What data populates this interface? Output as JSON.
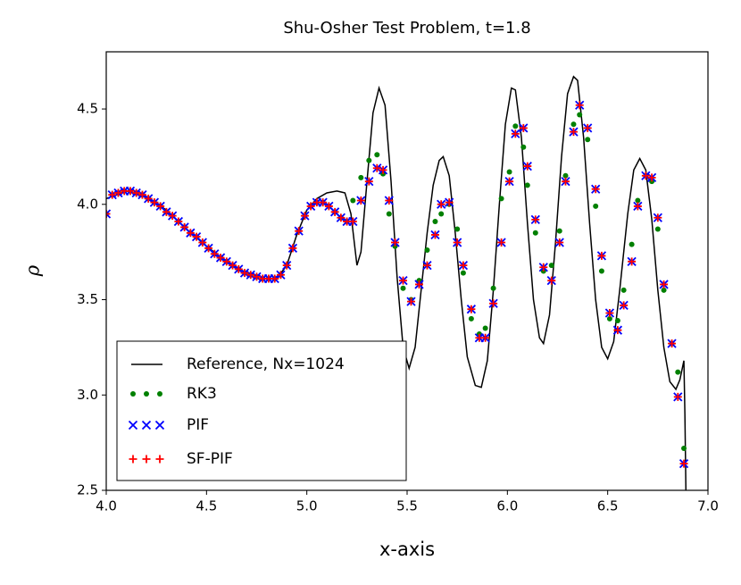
{
  "chart_data": {
    "type": "line",
    "title": "Shu-Osher Test Problem, t=1.8",
    "x_label": "x-axis",
    "y_label": "ρ",
    "xlim": [
      4.0,
      7.0
    ],
    "ylim": [
      2.5,
      4.8
    ],
    "xticks": [
      {
        "value": 4.0,
        "label": "4.0"
      },
      4.5,
      {
        "value": 5.0,
        "label": "5.0"
      },
      5.5,
      {
        "value": 6.0,
        "label": "6.0"
      },
      6.5,
      {
        "value": 7.0,
        "label": "7.0"
      }
    ],
    "yticks": [
      2.5,
      {
        "value": 3.0,
        "label": "3.0"
      },
      3.5,
      {
        "value": 4.0,
        "label": "4.0"
      },
      4.5
    ],
    "legend": "lower left",
    "series": [
      {
        "name": "Reference, Nx=1024",
        "color": "#000000",
        "marker": "line",
        "x": [
          4.0,
          4.1,
          4.2,
          4.3,
          4.4,
          4.5,
          4.6,
          4.7,
          4.8,
          4.85,
          4.9,
          4.95,
          5.0,
          5.05,
          5.1,
          5.15,
          5.19,
          5.22,
          5.25,
          5.27,
          5.3,
          5.33,
          5.36,
          5.39,
          5.42,
          5.45,
          5.48,
          5.51,
          5.54,
          5.57,
          5.6,
          5.63,
          5.66,
          5.68,
          5.71,
          5.74,
          5.77,
          5.8,
          5.84,
          5.87,
          5.9,
          5.93,
          5.96,
          5.99,
          6.02,
          6.04,
          6.07,
          6.1,
          6.13,
          6.16,
          6.18,
          6.21,
          6.24,
          6.27,
          6.3,
          6.33,
          6.35,
          6.38,
          6.41,
          6.44,
          6.47,
          6.5,
          6.53,
          6.56,
          6.6,
          6.63,
          6.66,
          6.69,
          6.72,
          6.75,
          6.78,
          6.81,
          6.84,
          6.86,
          6.88,
          6.885,
          6.89
        ],
        "values": [
          4.03,
          4.07,
          4.04,
          3.97,
          3.87,
          3.78,
          3.7,
          3.64,
          3.61,
          3.61,
          3.68,
          3.84,
          3.97,
          4.03,
          4.06,
          4.07,
          4.06,
          3.95,
          3.68,
          3.75,
          4.12,
          4.48,
          4.61,
          4.52,
          4.12,
          3.62,
          3.25,
          3.14,
          3.25,
          3.55,
          3.85,
          4.1,
          4.23,
          4.25,
          4.15,
          3.85,
          3.5,
          3.2,
          3.05,
          3.04,
          3.18,
          3.55,
          4.0,
          4.42,
          4.61,
          4.6,
          4.35,
          3.9,
          3.5,
          3.3,
          3.27,
          3.42,
          3.8,
          4.25,
          4.58,
          4.67,
          4.65,
          4.35,
          3.9,
          3.5,
          3.25,
          3.19,
          3.28,
          3.55,
          3.95,
          4.18,
          4.24,
          4.18,
          3.92,
          3.55,
          3.25,
          3.07,
          3.03,
          3.08,
          3.18,
          2.9,
          2.5
        ]
      },
      {
        "name": "RK3",
        "color": "#008000",
        "marker": "dot",
        "x": [
          4.0,
          4.03,
          4.06,
          4.09,
          4.12,
          4.15,
          4.18,
          4.21,
          4.24,
          4.27,
          4.3,
          4.33,
          4.36,
          4.39,
          4.42,
          4.45,
          4.48,
          4.51,
          4.54,
          4.57,
          4.6,
          4.63,
          4.66,
          4.69,
          4.72,
          4.75,
          4.78,
          4.81,
          4.84,
          4.87,
          4.9,
          4.93,
          4.96,
          4.99,
          5.02,
          5.05,
          5.08,
          5.11,
          5.14,
          5.17,
          5.2,
          5.23,
          5.27,
          5.31,
          5.35,
          5.38,
          5.41,
          5.44,
          5.48,
          5.52,
          5.56,
          5.6,
          5.64,
          5.67,
          5.71,
          5.75,
          5.78,
          5.82,
          5.86,
          5.89,
          5.93,
          5.97,
          6.01,
          6.04,
          6.08,
          6.1,
          6.14,
          6.18,
          6.22,
          6.26,
          6.29,
          6.33,
          6.36,
          6.4,
          6.44,
          6.47,
          6.51,
          6.55,
          6.58,
          6.62,
          6.65,
          6.69,
          6.72,
          6.75,
          6.78,
          6.82,
          6.85,
          6.88
        ],
        "values": [
          3.95,
          4.05,
          4.06,
          4.07,
          4.07,
          4.06,
          4.05,
          4.03,
          4.01,
          3.99,
          3.96,
          3.94,
          3.91,
          3.88,
          3.85,
          3.83,
          3.8,
          3.77,
          3.74,
          3.72,
          3.7,
          3.68,
          3.66,
          3.64,
          3.63,
          3.62,
          3.61,
          3.61,
          3.61,
          3.63,
          3.68,
          3.77,
          3.86,
          3.94,
          3.99,
          4.01,
          4.01,
          3.99,
          3.96,
          3.93,
          3.91,
          4.02,
          4.14,
          4.23,
          4.26,
          4.16,
          3.95,
          3.78,
          3.56,
          3.5,
          3.6,
          3.76,
          3.91,
          3.95,
          4.0,
          3.87,
          3.64,
          3.4,
          3.32,
          3.35,
          3.56,
          4.03,
          4.17,
          4.41,
          4.3,
          4.1,
          3.85,
          3.65,
          3.68,
          3.86,
          4.15,
          4.42,
          4.47,
          4.34,
          3.99,
          3.65,
          3.4,
          3.39,
          3.55,
          3.79,
          4.02,
          4.15,
          4.12,
          3.87,
          3.55,
          3.27,
          3.12,
          2.72
        ]
      },
      {
        "name": "PIF",
        "color": "#0000ff",
        "marker": "x",
        "x": [
          4.0,
          4.03,
          4.06,
          4.09,
          4.12,
          4.15,
          4.18,
          4.21,
          4.24,
          4.27,
          4.3,
          4.33,
          4.36,
          4.39,
          4.42,
          4.45,
          4.48,
          4.51,
          4.54,
          4.57,
          4.6,
          4.63,
          4.66,
          4.69,
          4.72,
          4.75,
          4.78,
          4.81,
          4.84,
          4.87,
          4.9,
          4.93,
          4.96,
          4.99,
          5.02,
          5.05,
          5.08,
          5.11,
          5.14,
          5.17,
          5.2,
          5.23,
          5.27,
          5.31,
          5.35,
          5.38,
          5.41,
          5.44,
          5.48,
          5.52,
          5.56,
          5.6,
          5.64,
          5.67,
          5.71,
          5.75,
          5.78,
          5.82,
          5.86,
          5.89,
          5.93,
          5.97,
          6.01,
          6.04,
          6.08,
          6.1,
          6.14,
          6.18,
          6.22,
          6.26,
          6.29,
          6.33,
          6.36,
          6.4,
          6.44,
          6.47,
          6.51,
          6.55,
          6.58,
          6.62,
          6.65,
          6.69,
          6.72,
          6.75,
          6.78,
          6.82,
          6.85,
          6.88
        ],
        "values": [
          3.95,
          4.05,
          4.06,
          4.07,
          4.07,
          4.06,
          4.05,
          4.03,
          4.01,
          3.99,
          3.96,
          3.94,
          3.91,
          3.88,
          3.85,
          3.83,
          3.8,
          3.77,
          3.74,
          3.72,
          3.7,
          3.68,
          3.66,
          3.64,
          3.63,
          3.62,
          3.61,
          3.61,
          3.61,
          3.63,
          3.68,
          3.77,
          3.86,
          3.94,
          3.99,
          4.01,
          4.01,
          3.99,
          3.96,
          3.93,
          3.91,
          3.91,
          4.02,
          4.12,
          4.19,
          4.18,
          4.02,
          3.8,
          3.6,
          3.49,
          3.58,
          3.68,
          3.84,
          4.0,
          4.01,
          3.8,
          3.68,
          3.45,
          3.3,
          3.3,
          3.48,
          3.8,
          4.12,
          4.37,
          4.4,
          4.2,
          3.92,
          3.67,
          3.6,
          3.8,
          4.12,
          4.38,
          4.52,
          4.4,
          4.08,
          3.73,
          3.43,
          3.34,
          3.47,
          3.7,
          3.99,
          4.15,
          4.14,
          3.93,
          3.58,
          3.27,
          2.99,
          2.64
        ]
      },
      {
        "name": "SF-PIF",
        "color": "#ff0000",
        "marker": "plus",
        "x": [
          4.0,
          4.03,
          4.06,
          4.09,
          4.12,
          4.15,
          4.18,
          4.21,
          4.24,
          4.27,
          4.3,
          4.33,
          4.36,
          4.39,
          4.42,
          4.45,
          4.48,
          4.51,
          4.54,
          4.57,
          4.6,
          4.63,
          4.66,
          4.69,
          4.72,
          4.75,
          4.78,
          4.81,
          4.84,
          4.87,
          4.9,
          4.93,
          4.96,
          4.99,
          5.02,
          5.05,
          5.08,
          5.11,
          5.14,
          5.17,
          5.2,
          5.23,
          5.27,
          5.31,
          5.35,
          5.38,
          5.41,
          5.44,
          5.48,
          5.52,
          5.56,
          5.6,
          5.64,
          5.67,
          5.71,
          5.75,
          5.78,
          5.82,
          5.86,
          5.89,
          5.93,
          5.97,
          6.01,
          6.04,
          6.08,
          6.1,
          6.14,
          6.18,
          6.22,
          6.26,
          6.29,
          6.33,
          6.36,
          6.4,
          6.44,
          6.47,
          6.51,
          6.55,
          6.58,
          6.62,
          6.65,
          6.69,
          6.72,
          6.75,
          6.78,
          6.82,
          6.85,
          6.88
        ],
        "values": [
          3.95,
          4.05,
          4.06,
          4.07,
          4.07,
          4.06,
          4.05,
          4.03,
          4.01,
          3.99,
          3.96,
          3.94,
          3.91,
          3.88,
          3.85,
          3.83,
          3.8,
          3.77,
          3.74,
          3.72,
          3.7,
          3.68,
          3.66,
          3.64,
          3.63,
          3.62,
          3.61,
          3.61,
          3.61,
          3.63,
          3.68,
          3.77,
          3.86,
          3.94,
          3.99,
          4.01,
          4.01,
          3.99,
          3.96,
          3.93,
          3.91,
          3.91,
          4.02,
          4.12,
          4.19,
          4.18,
          4.02,
          3.8,
          3.6,
          3.49,
          3.58,
          3.68,
          3.84,
          4.0,
          4.01,
          3.8,
          3.68,
          3.45,
          3.3,
          3.3,
          3.48,
          3.8,
          4.12,
          4.37,
          4.4,
          4.2,
          3.92,
          3.67,
          3.6,
          3.8,
          4.12,
          4.38,
          4.52,
          4.4,
          4.08,
          3.73,
          3.43,
          3.34,
          3.47,
          3.7,
          3.99,
          4.15,
          4.14,
          3.93,
          3.58,
          3.27,
          2.99,
          2.64
        ]
      }
    ]
  }
}
